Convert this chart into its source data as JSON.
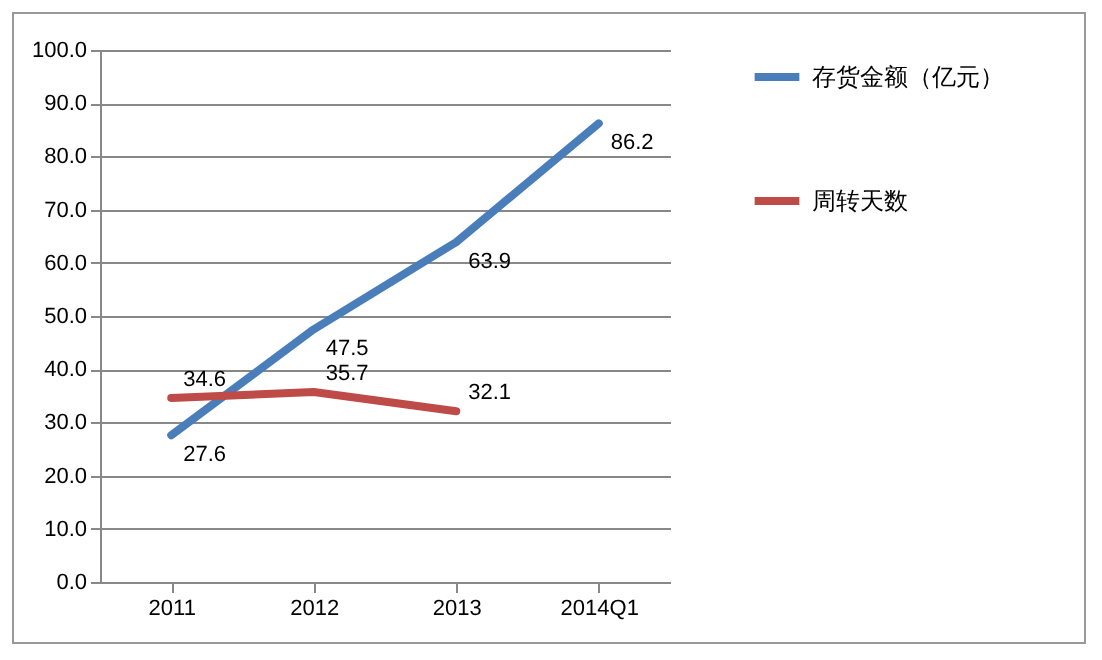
{
  "chart_data": {
    "type": "line",
    "categories": [
      "2011",
      "2012",
      "2013",
      "2014Q1"
    ],
    "series": [
      {
        "name": "存货金额（亿元）",
        "color": "#4a7ebb",
        "values": [
          27.6,
          47.5,
          63.9,
          86.2
        ]
      },
      {
        "name": "周转天数",
        "color": "#be4b48",
        "values": [
          34.6,
          35.7,
          32.1,
          null
        ]
      }
    ],
    "ylim": [
      0,
      100
    ],
    "yticks": [
      {
        "value": 0,
        "label": "0.0"
      },
      {
        "value": 10,
        "label": "10.0"
      },
      {
        "value": 20,
        "label": "20.0"
      },
      {
        "value": 30,
        "label": "30.0"
      },
      {
        "value": 40,
        "label": "40.0"
      },
      {
        "value": 50,
        "label": "50.0"
      },
      {
        "value": 60,
        "label": "60.0"
      },
      {
        "value": 70,
        "label": "70.0"
      },
      {
        "value": 80,
        "label": "80.0"
      },
      {
        "value": 90,
        "label": "90.0"
      },
      {
        "value": 100,
        "label": "100.0"
      }
    ],
    "grid": "y",
    "legend": "right",
    "data_labels": true,
    "marker": "none",
    "line_style": "solid"
  }
}
